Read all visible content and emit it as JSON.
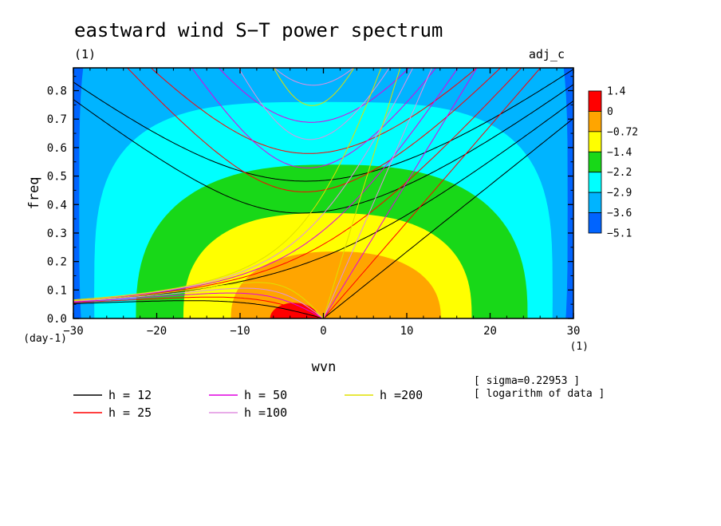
{
  "chart_data": {
    "type": "heatmap",
    "title": "eastward wind S−T power spectrum",
    "subtitle_left": "(1)",
    "subtitle_right": "adj_c",
    "xlabel": "wvn",
    "ylabel": "freq",
    "x_unit": "(1)",
    "y_unit": "(day-1)",
    "xlim": [
      -30,
      30
    ],
    "ylim": [
      0,
      0.88
    ],
    "xticks": [
      "−30",
      "−20",
      "−10",
      "0",
      "10",
      "20",
      "30"
    ],
    "xtick_values": [
      -30,
      -20,
      -10,
      0,
      10,
      20,
      30
    ],
    "yticks": [
      "0.0",
      "0.1",
      "0.2",
      "0.3",
      "0.4",
      "0.5",
      "0.6",
      "0.7",
      "0.8"
    ],
    "ytick_values": [
      0,
      0.1,
      0.2,
      0.3,
      0.4,
      0.5,
      0.6,
      0.7,
      0.8
    ],
    "colorbar": {
      "labels": [
        "1.4",
        "0",
        "−0.72",
        "−1.4",
        "−2.2",
        "−2.9",
        "−3.6",
        "−5.1"
      ],
      "colors": [
        "#ff0000",
        "#ffa500",
        "#ffff00",
        "#18d818",
        "#00ffff",
        "#00b4ff",
        "#0064ff"
      ]
    },
    "levels": [
      {
        "color": "#00b4ff",
        "cx": 0,
        "cy": 0.4,
        "rx": 29.3,
        "ry": 0.96,
        "p": 4.0
      },
      {
        "color": "#00ffff",
        "cx": 0,
        "cy": 0.08,
        "rx": 27.5,
        "ry": 0.68,
        "p": 3.4
      },
      {
        "color": "#18d818",
        "cx": 1,
        "cy": 0.0,
        "rx": 23.5,
        "ry": 0.54,
        "p": 2.6
      },
      {
        "color": "#ffff00",
        "cx": 0.5,
        "cy": 0.0,
        "rx": 17.3,
        "ry": 0.37,
        "p": 2.6
      },
      {
        "color": "#ffa500",
        "cx": 1.5,
        "cy": 0.0,
        "rx": 12.6,
        "ry": 0.235,
        "p": 2.3
      },
      {
        "color": "#ff0000",
        "cx": -3.5,
        "cy": 0.0,
        "rx": 2.9,
        "ry": 0.055,
        "p": 2.0
      }
    ],
    "background_color": "#0064ff",
    "dispersion_curves": [
      {
        "h": 12,
        "color": "#000000"
      },
      {
        "h": 25,
        "color": "#ff0000"
      },
      {
        "h": 50,
        "color": "#e000e0"
      },
      {
        "h": 100,
        "color": "#e090e0"
      },
      {
        "h": 200,
        "color": "#e0e000"
      }
    ],
    "legend": [
      {
        "label": "h = 12",
        "color": "#000000"
      },
      {
        "label": "h = 25",
        "color": "#ff0000"
      },
      {
        "label": "h = 50",
        "color": "#e000e0"
      },
      {
        "label": "h =100",
        "color": "#e090e0"
      },
      {
        "label": "h =200",
        "color": "#e0e000"
      }
    ],
    "notes": [
      "[ sigma=0.22953 ]",
      "[ logarithm of data ]"
    ]
  }
}
